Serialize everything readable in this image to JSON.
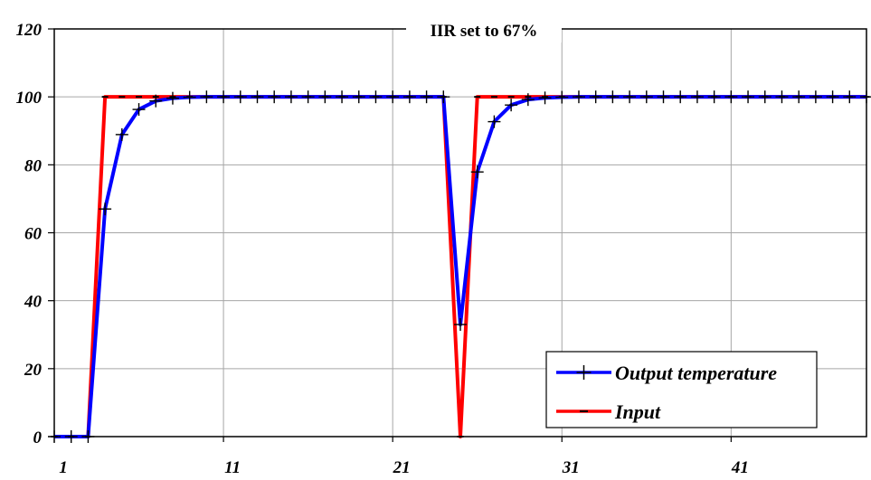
{
  "chart_data": {
    "type": "line",
    "title": "IIR set to 67%",
    "xlabel": "",
    "ylabel": "",
    "xlim": [
      1,
      49
    ],
    "ylim": [
      0,
      120
    ],
    "x_ticks": [
      1,
      11,
      21,
      31,
      41
    ],
    "y_ticks": [
      0,
      20,
      40,
      60,
      80,
      100,
      120
    ],
    "grid": true,
    "legend_position": "bottom-right",
    "x": [
      1,
      2,
      3,
      4,
      5,
      6,
      7,
      8,
      9,
      10,
      11,
      12,
      13,
      14,
      15,
      16,
      17,
      18,
      19,
      20,
      21,
      22,
      23,
      24,
      25,
      26,
      27,
      28,
      29,
      30,
      31,
      32,
      33,
      34,
      35,
      36,
      37,
      38,
      39,
      40,
      41,
      42,
      43,
      44,
      45,
      46,
      47,
      48,
      49
    ],
    "series": [
      {
        "name": "Output temperature",
        "color": "#0000ff",
        "marker": "plus",
        "values": [
          0,
          0,
          0,
          67,
          88.9,
          96.3,
          98.8,
          99.6,
          99.9,
          100,
          100,
          100,
          100,
          100,
          100,
          100,
          100,
          100,
          100,
          100,
          100,
          100,
          100,
          100,
          33,
          77.9,
          92.7,
          97.6,
          99.2,
          99.7,
          99.9,
          100,
          100,
          100,
          100,
          100,
          100,
          100,
          100,
          100,
          100,
          100,
          100,
          100,
          100,
          100,
          100,
          100,
          100
        ]
      },
      {
        "name": "Input",
        "color": "#ff0000",
        "marker": "dash",
        "values": [
          0,
          0,
          0,
          100,
          100,
          100,
          100,
          100,
          100,
          100,
          100,
          100,
          100,
          100,
          100,
          100,
          100,
          100,
          100,
          100,
          100,
          100,
          100,
          100,
          0,
          100,
          100,
          100,
          100,
          100,
          100,
          100,
          100,
          100,
          100,
          100,
          100,
          100,
          100,
          100,
          100,
          100,
          100,
          100,
          100,
          100,
          100,
          100,
          100
        ]
      }
    ]
  }
}
